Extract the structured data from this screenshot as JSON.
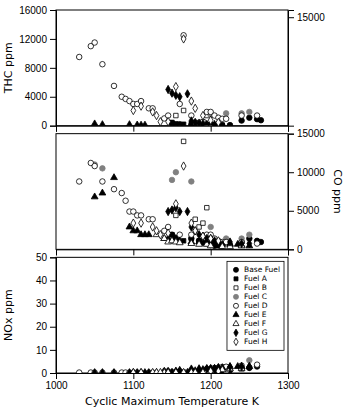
{
  "chart_data": [
    {
      "type": "scatter",
      "ylabel": "THC ppm",
      "xlim": [
        1000,
        1300
      ],
      "xticks": [
        1000,
        1100,
        1200,
        1300
      ],
      "ylim": [
        0,
        16000
      ],
      "yticks": [
        0,
        4000,
        8000,
        12000,
        16000
      ],
      "y2lim": [
        0,
        16000
      ],
      "y2ticks": [
        15000
      ],
      "tick_labels": "y",
      "series": [
        {
          "name": "Base Fuel",
          "marker": "circle",
          "color": "black",
          "x": [
            1150,
            1160,
            1175,
            1185,
            1190,
            1195,
            1205,
            1215,
            1225,
            1240,
            1250,
            1260,
            1265
          ],
          "values": [
            350,
            200,
            100,
            100,
            50,
            100,
            80,
            50,
            80,
            700,
            1100,
            900,
            750
          ]
        },
        {
          "name": "Fuel A",
          "marker": "square",
          "color": "black",
          "x": [
            1150,
            1155,
            1165,
            1175,
            1185,
            1195,
            1200,
            1210,
            1215
          ],
          "values": [
            450,
            250,
            200,
            250,
            150,
            80,
            120,
            50,
            80
          ]
        },
        {
          "name": "Fuel B",
          "marker": "square-open",
          "color": "black",
          "x": [
            1155,
            1165,
            1180,
            1185,
            1190,
            1195
          ],
          "values": [
            1400,
            2100,
            450,
            350,
            550,
            1400
          ]
        },
        {
          "name": "Fuel C",
          "marker": "circle",
          "color": "#808080",
          "x": [
            1200,
            1220,
            1240,
            1250
          ],
          "values": [
            1400,
            1700,
            1700,
            1900
          ]
        },
        {
          "name": "Fuel D",
          "marker": "circle-open",
          "color": "black",
          "x": [
            1030,
            1045,
            1050,
            1060,
            1075,
            1085,
            1090,
            1095,
            1100,
            1105,
            1110,
            1120,
            1125,
            1140,
            1145,
            1160,
            1165,
            1175,
            1195,
            1200,
            1205,
            1210,
            1215,
            1220,
            1240,
            1260
          ],
          "values": [
            9500,
            11000,
            11500,
            8500,
            5500,
            4000,
            3700,
            3400,
            3000,
            3000,
            3400,
            2400,
            2400,
            1000,
            1400,
            3000,
            12500,
            1400,
            1900,
            1900,
            1400,
            1100,
            950,
            950,
            1400,
            1400
          ]
        },
        {
          "name": "Fuel E",
          "marker": "triangle",
          "color": "black",
          "x": [
            1050,
            1060,
            1095,
            1105,
            1110,
            1115
          ],
          "values": [
            250,
            150,
            150,
            100,
            80,
            80
          ]
        },
        {
          "name": "Fuel F",
          "marker": "triangle-open",
          "color": "black",
          "x": [
            1195,
            1200
          ],
          "values": [
            150,
            50
          ]
        },
        {
          "name": "Fuel G",
          "marker": "diamond",
          "color": "black",
          "x": [
            1145,
            1150,
            1155,
            1160,
            1170,
            1175,
            1180,
            1185,
            1190,
            1195,
            1200,
            1205,
            1210
          ],
          "values": [
            5000,
            4500,
            4200,
            4000,
            4400,
            650,
            450,
            350,
            250,
            150,
            150,
            150,
            100
          ]
        },
        {
          "name": "Fuel H",
          "marker": "diamond-open",
          "color": "black",
          "x": [
            1100,
            1110,
            1125,
            1130,
            1135,
            1145,
            1155,
            1165,
            1175,
            1180,
            1190,
            1200,
            1210
          ],
          "values": [
            2100,
            2700,
            1900,
            1400,
            550,
            550,
            5400,
            12000,
            3400,
            2400,
            1400,
            750,
            450
          ]
        }
      ]
    },
    {
      "type": "scatter",
      "y2label": "CO ppm",
      "xlim": [
        1000,
        1300
      ],
      "xticks": [
        1000,
        1100,
        1200,
        1300
      ],
      "y2lim": [
        0,
        15000
      ],
      "y2ticks": [
        0,
        5000,
        10000,
        15000
      ],
      "tick_labels": "y",
      "series": [
        {
          "name": "Base Fuel",
          "axis": "y2",
          "marker": "circle",
          "color": "black",
          "x": [
            1150,
            1155,
            1175,
            1185,
            1190,
            1200,
            1205,
            1215,
            1225,
            1240,
            1250,
            1260,
            1265
          ],
          "values": [
            1900,
            1400,
            1400,
            1100,
            850,
            550,
            450,
            450,
            550,
            950,
            1400,
            1100,
            950
          ]
        },
        {
          "name": "Fuel A",
          "axis": "y2",
          "marker": "square",
          "color": "black",
          "x": [
            1150,
            1155,
            1165,
            1175,
            1185,
            1195,
            1200,
            1210,
            1215
          ],
          "values": [
            1900,
            1400,
            1100,
            1400,
            1100,
            750,
            650,
            450,
            450
          ]
        },
        {
          "name": "Fuel B",
          "axis": "y2",
          "marker": "square-open",
          "color": "black",
          "x": [
            1155,
            1165,
            1180,
            1185,
            1190,
            1195
          ],
          "values": [
            4400,
            14000,
            3900,
            2900,
            3400,
            5400
          ]
        },
        {
          "name": "Fuel C",
          "axis": "y2",
          "marker": "circle",
          "color": "#808080",
          "x": [
            1050,
            1060,
            1150,
            1155,
            1175,
            1200,
            1220,
            1240,
            1250
          ],
          "values": [
            11000,
            10500,
            9000,
            10000,
            8800,
            2900,
            1400,
            1400,
            1900
          ]
        },
        {
          "name": "Fuel D",
          "axis": "y2",
          "marker": "circle-open",
          "color": "black",
          "x": [
            1030,
            1045,
            1050,
            1060,
            1075,
            1085,
            1090,
            1095,
            1100,
            1105,
            1110,
            1120,
            1125,
            1140,
            1145,
            1160,
            1175,
            1195,
            1200,
            1205,
            1210,
            1215,
            1220,
            1240,
            1260
          ],
          "values": [
            8800,
            11200,
            10800,
            8800,
            7800,
            7300,
            6300,
            4900,
            4900,
            4400,
            4400,
            3900,
            3900,
            2400,
            2900,
            1900,
            1900,
            1900,
            1900,
            1400,
            1100,
            950,
            950,
            950,
            750
          ]
        },
        {
          "name": "Fuel E",
          "axis": "y2",
          "marker": "triangle",
          "color": "black",
          "x": [
            1050,
            1060,
            1075,
            1095,
            1100,
            1105,
            1110,
            1115,
            1120,
            1140,
            1145,
            1155,
            1160,
            1175,
            1185,
            1195,
            1200,
            1205,
            1210,
            1215,
            1225,
            1235,
            1240,
            1250
          ],
          "values": [
            6800,
            7300,
            9300,
            2900,
            2400,
            2400,
            1900,
            1900,
            1900,
            1400,
            1400,
            1400,
            1100,
            950,
            950,
            950,
            850,
            850,
            750,
            650,
            650,
            650,
            550,
            450
          ]
        },
        {
          "name": "Fuel F",
          "axis": "y2",
          "marker": "triangle-open",
          "color": "black",
          "x": [
            1130,
            1140,
            1145,
            1150,
            1155,
            1160,
            1175,
            1185,
            1195,
            1200,
            1215,
            1225,
            1240
          ],
          "values": [
            1900,
            1400,
            950,
            1100,
            950,
            850,
            750,
            650,
            650,
            450,
            350,
            350,
            450
          ]
        },
        {
          "name": "Fuel G",
          "axis": "y2",
          "marker": "diamond",
          "color": "black",
          "x": [
            1145,
            1150,
            1155,
            1160,
            1170,
            1175,
            1180,
            1185,
            1190,
            1195,
            1200,
            1205,
            1210,
            1225,
            1240,
            1250
          ],
          "values": [
            4900,
            5100,
            5400,
            4900,
            4900,
            2900,
            2400,
            1900,
            1700,
            1400,
            1400,
            1100,
            950,
            950,
            750,
            750
          ]
        },
        {
          "name": "Fuel H",
          "axis": "y2",
          "marker": "diamond-open",
          "color": "black",
          "x": [
            1100,
            1110,
            1125,
            1130,
            1135,
            1145,
            1155,
            1165,
            1175,
            1180,
            1190,
            1200,
            1210
          ],
          "values": [
            3400,
            3400,
            2900,
            2400,
            1900,
            2100,
            5900,
            10800,
            3400,
            2400,
            1700,
            1400,
            1100
          ]
        }
      ]
    },
    {
      "type": "scatter",
      "xlabel": "Cyclic Maximum Temperature K",
      "ylabel": "NOx ppm",
      "xlim": [
        1000,
        1300
      ],
      "xticks": [
        1000,
        1100,
        1200,
        1300
      ],
      "ylim": [
        0,
        50
      ],
      "yticks": [
        0,
        10,
        20,
        30,
        40,
        50
      ],
      "legend": "upper right",
      "series": [
        {
          "name": "Base Fuel",
          "marker": "circle",
          "color": "black",
          "x": [
            1150,
            1155,
            1175,
            1185,
            1190,
            1200,
            1205,
            1215,
            1225,
            1240,
            1250,
            1260
          ],
          "values": [
            0.3,
            0.3,
            0.4,
            0.4,
            0.4,
            0.8,
            0.8,
            0.9,
            1.2,
            1.8,
            2.2,
            2.8
          ]
        },
        {
          "name": "Fuel A",
          "marker": "square",
          "color": "black",
          "x": [
            1150,
            1155,
            1165,
            1175,
            1185,
            1195,
            1200,
            1210,
            1215
          ],
          "values": [
            0.3,
            0.3,
            0.3,
            0.3,
            0.7,
            0.3,
            0.8,
            0.8,
            0.8
          ]
        },
        {
          "name": "Fuel B",
          "marker": "square-open",
          "color": "black",
          "x": [
            1155,
            1165,
            1180,
            1185,
            1190,
            1195
          ],
          "values": [
            0.3,
            0.3,
            0.3,
            0.3,
            0.3,
            0.3
          ]
        },
        {
          "name": "Fuel C",
          "marker": "circle",
          "color": "#808080",
          "x": [
            1150,
            1155,
            1175,
            1200,
            1220,
            1240,
            1250
          ],
          "values": [
            0.3,
            0.3,
            0.3,
            0.8,
            1.2,
            1.3,
            5.5
          ]
        },
        {
          "name": "Fuel D",
          "marker": "circle-open",
          "color": "black",
          "x": [
            1030,
            1045,
            1050,
            1060,
            1075,
            1085,
            1090,
            1095,
            1100,
            1105,
            1110,
            1120,
            1125,
            1140,
            1145,
            1160,
            1175,
            1195,
            1200,
            1205,
            1210,
            1215,
            1220,
            1240,
            1260
          ],
          "values": [
            0.2,
            0.2,
            0.2,
            0.2,
            0.2,
            0.2,
            0.2,
            0.2,
            0.2,
            0.2,
            0.2,
            0.2,
            0.2,
            0.7,
            0.7,
            0.8,
            1.2,
            1.8,
            1.9,
            2.2,
            2.3,
            2.6,
            2.7,
            3.2,
            3.6
          ]
        },
        {
          "name": "Fuel E",
          "marker": "triangle",
          "color": "black",
          "x": [
            1050,
            1060,
            1075,
            1095,
            1100,
            1105,
            1110,
            1115,
            1120,
            1140,
            1145,
            1155,
            1160,
            1175,
            1185,
            1195,
            1200,
            1205,
            1210,
            1215,
            1225,
            1235,
            1240,
            1250
          ],
          "values": [
            0.2,
            0.2,
            0.2,
            0.2,
            0.2,
            0.2,
            0.2,
            0.2,
            0.2,
            0.8,
            0.8,
            0.9,
            1.2,
            1.8,
            1.9,
            1.9,
            1.9,
            1.9,
            2.3,
            2.3,
            2.7,
            2.8,
            2.8,
            2.8
          ]
        },
        {
          "name": "Fuel F",
          "marker": "triangle-open",
          "color": "black",
          "x": [
            1130,
            1140,
            1145,
            1150,
            1155,
            1160,
            1175,
            1185,
            1195,
            1200,
            1215,
            1225,
            1240
          ],
          "values": [
            0.2,
            0.2,
            0.2,
            0.2,
            0.2,
            0.2,
            0.8,
            0.8,
            0.8,
            1.3,
            1.4,
            1.8,
            1.9
          ]
        },
        {
          "name": "Fuel G",
          "marker": "diamond",
          "color": "black",
          "x": [
            1145,
            1150,
            1155,
            1160,
            1170,
            1175,
            1180,
            1185,
            1190,
            1195,
            1200,
            1205,
            1210,
            1225,
            1240,
            1250
          ],
          "values": [
            0.2,
            0.2,
            0.2,
            0.2,
            0.2,
            0.8,
            0.9,
            1.3,
            1.4,
            1.8,
            1.9,
            1.9,
            2.3,
            2.7,
            2.8,
            2.8
          ]
        },
        {
          "name": "Fuel H",
          "marker": "diamond-open",
          "color": "black",
          "x": [
            1100,
            1110,
            1125,
            1130,
            1135,
            1145,
            1155,
            1165,
            1175,
            1180,
            1190,
            1200,
            1210
          ],
          "values": [
            0.2,
            0.2,
            0.2,
            0.2,
            0.2,
            0.2,
            0.2,
            0.2,
            0.2,
            0.2,
            0.2,
            0.8,
            0.8
          ]
        }
      ]
    }
  ]
}
